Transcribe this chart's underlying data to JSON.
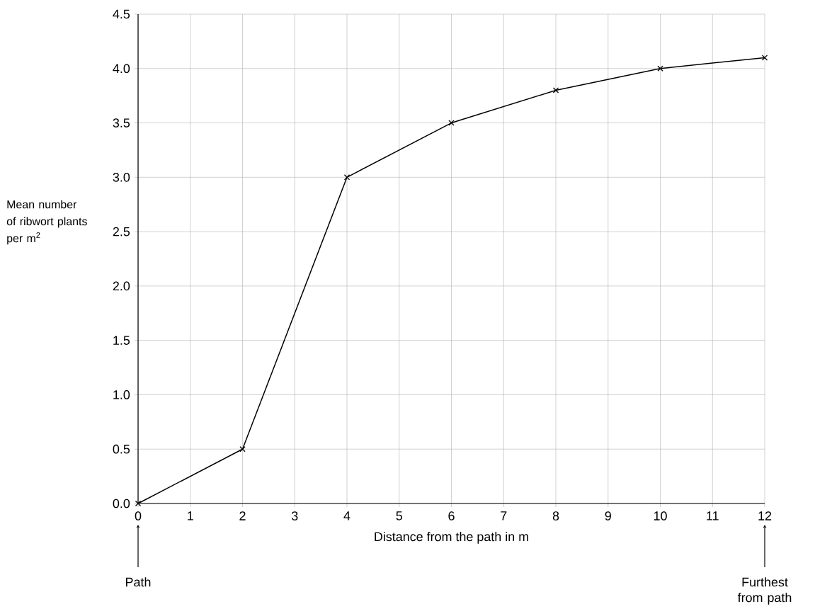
{
  "chart_data": {
    "type": "line",
    "xlabel": "Distance from the path in m",
    "ylabel": "Mean number of ribwort plants per m$^{2}$",
    "x": [
      0,
      2,
      4,
      6,
      8,
      10,
      12
    ],
    "series": [
      {
        "color": "#000000",
        "values": [
          0,
          0.5,
          3.0,
          3.5,
          3.8,
          4.0,
          4.1
        ]
      }
    ],
    "xlim": [
      0,
      12
    ],
    "ylim": [
      0,
      4.5
    ],
    "xticks": [
      0,
      1,
      2,
      3,
      4,
      5,
      6,
      7,
      8,
      9,
      10,
      11,
      12
    ],
    "yticks": [
      {
        "value": 0,
        "label": "0.0"
      },
      {
        "value": 0.5,
        "label": "0.5"
      },
      {
        "value": 1,
        "label": "1.0"
      },
      {
        "value": 1.5,
        "label": "1.5"
      },
      {
        "value": 2,
        "label": "2.0"
      },
      {
        "value": 2.5,
        "label": "2.5"
      },
      {
        "value": 3,
        "label": "3.0"
      },
      {
        "value": 3.5,
        "label": "3.5"
      },
      {
        "value": 4,
        "label": "4.0"
      },
      {
        "value": 4.5,
        "label": "4.5"
      }
    ],
    "grid": true,
    "marker": "cross",
    "line_style": "solid",
    "annotations": [
      {
        "text": "Path",
        "x": 0
      },
      {
        "text": "Furthest from path",
        "x": 12
      }
    ]
  }
}
